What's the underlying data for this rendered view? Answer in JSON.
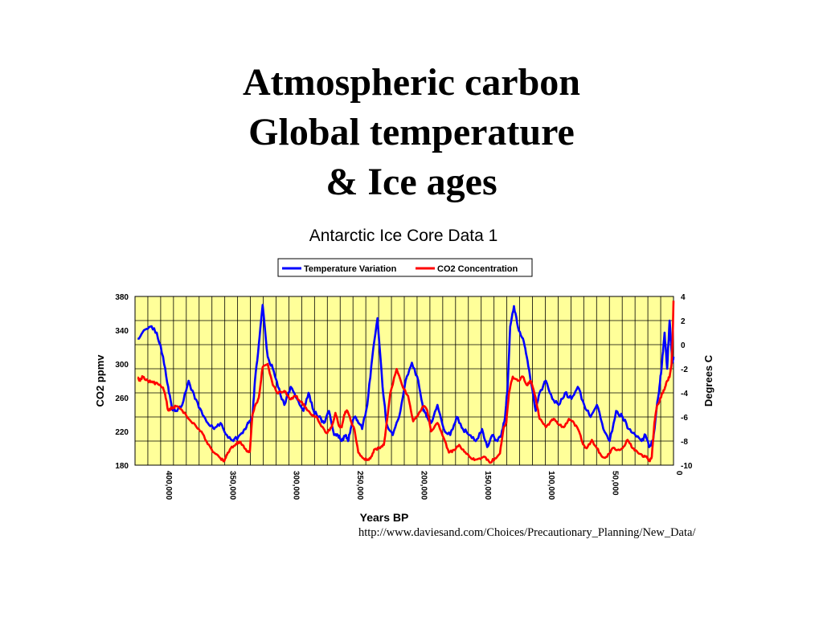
{
  "slide": {
    "title_lines": [
      "Atmospheric carbon",
      "Global temperature",
      "& Ice ages"
    ],
    "source_url": "http://www.daviesand.com/Choices/Precautionary_Planning/New_Data/"
  },
  "colors": {
    "plot_bg": "#ffff99",
    "grid": "#000000",
    "temperature": "#0000ff",
    "co2": "#ff0000"
  },
  "chart_data": {
    "type": "line",
    "title": "Antarctic Ice Core Data 1",
    "xlabel": "Years BP",
    "ylabel_left": "CO2 ppmv",
    "ylabel_right": "Degrees C",
    "xlim": [
      422000,
      0
    ],
    "x_ticks": [
      400000,
      350000,
      300000,
      250000,
      200000,
      150000,
      100000,
      50000,
      0
    ],
    "x_tick_labels": [
      "400,000",
      "350,000",
      "300,000",
      "250,000",
      "200,000",
      "150,000",
      "100,000",
      "50,000",
      "0"
    ],
    "y_left_lim": [
      180,
      380
    ],
    "y_left_ticks": [
      180,
      220,
      260,
      300,
      340,
      380
    ],
    "y_right_lim": [
      -10,
      4
    ],
    "y_right_ticks": [
      -10,
      -8,
      -6,
      -4,
      -2,
      0,
      2,
      4
    ],
    "grid": true,
    "legend_position": "top-center",
    "series": [
      {
        "name": "Temperature Variation",
        "axis": "right",
        "x": [
          420000,
          415000,
          410000,
          405000,
          400000,
          396000,
          393000,
          390000,
          385000,
          380000,
          375000,
          370000,
          365000,
          360000,
          355000,
          350000,
          345000,
          340000,
          336000,
          333000,
          330000,
          328000,
          325000,
          322000,
          318000,
          314000,
          310000,
          305000,
          300000,
          295000,
          290000,
          286000,
          282000,
          278000,
          274000,
          270000,
          266000,
          263000,
          260000,
          257000,
          255000,
          253000,
          250000,
          247000,
          244000,
          240000,
          236000,
          232000,
          228000,
          225000,
          220000,
          215000,
          210000,
          205000,
          200000,
          196000,
          193000,
          190000,
          185000,
          180000,
          175000,
          170000,
          165000,
          160000,
          155000,
          150000,
          146000,
          142000,
          138000,
          135000,
          132000,
          130000,
          128000,
          125000,
          122000,
          118000,
          115000,
          112000,
          108000,
          105000,
          100000,
          95000,
          90000,
          85000,
          80000,
          75000,
          70000,
          65000,
          60000,
          55000,
          50000,
          45000,
          40000,
          35000,
          30000,
          25000,
          22000,
          19000,
          16000,
          13000,
          11000,
          9000,
          7000,
          5000,
          3000,
          1000,
          0
        ],
        "values": [
          0.5,
          1.2,
          1.5,
          1.0,
          -1.0,
          -3.5,
          -5.3,
          -5.5,
          -5.0,
          -3.0,
          -4.5,
          -5.5,
          -6.5,
          -7.0,
          -6.5,
          -7.5,
          -8.0,
          -7.5,
          -7.0,
          -6.5,
          -6.0,
          -3.0,
          0.0,
          3.3,
          -1.0,
          -2.0,
          -3.5,
          -5.0,
          -3.5,
          -4.5,
          -5.5,
          -4.0,
          -5.5,
          -6.0,
          -6.5,
          -5.5,
          -7.5,
          -7.5,
          -8.0,
          -7.5,
          -8.0,
          -7.0,
          -6.0,
          -6.5,
          -7.0,
          -5.0,
          -1.0,
          2.2,
          -3.5,
          -6.5,
          -7.5,
          -6.0,
          -3.0,
          -1.5,
          -3.0,
          -5.5,
          -6.0,
          -6.5,
          -5.0,
          -7.0,
          -7.5,
          -6.0,
          -7.0,
          -7.5,
          -8.0,
          -7.0,
          -8.5,
          -7.5,
          -8.0,
          -7.5,
          -6.0,
          -3.5,
          1.5,
          3.2,
          1.5,
          0.5,
          -1.0,
          -3.0,
          -5.5,
          -4.0,
          -3.0,
          -4.5,
          -5.0,
          -4.0,
          -4.5,
          -3.5,
          -5.0,
          -6.0,
          -5.0,
          -7.0,
          -8.0,
          -5.5,
          -6.0,
          -7.0,
          -7.5,
          -8.0,
          -7.5,
          -8.5,
          -8.0,
          -5.0,
          -3.5,
          -1.5,
          1.0,
          -2.0,
          2.0,
          -1.5,
          -1.0
        ]
      },
      {
        "name": "CO2 Concentration",
        "axis": "left",
        "x": [
          420000,
          418000,
          416000,
          412000,
          408000,
          404000,
          400000,
          398000,
          396000,
          393000,
          390000,
          385000,
          380000,
          375000,
          370000,
          365000,
          360000,
          355000,
          352000,
          350000,
          347000,
          343000,
          340000,
          337000,
          334000,
          332000,
          330000,
          328000,
          325000,
          322000,
          318000,
          314000,
          310000,
          305000,
          300000,
          296000,
          292000,
          288000,
          284000,
          280000,
          276000,
          272000,
          268000,
          265000,
          262000,
          260000,
          258000,
          256000,
          253000,
          250000,
          247000,
          243000,
          240000,
          237000,
          234000,
          230000,
          227000,
          222000,
          217000,
          212000,
          208000,
          204000,
          200000,
          196000,
          193000,
          190000,
          185000,
          180000,
          176000,
          172000,
          168000,
          164000,
          160000,
          156000,
          152000,
          148000,
          144000,
          140000,
          136000,
          133000,
          131000,
          129000,
          126000,
          122000,
          118000,
          115000,
          112000,
          108000,
          105000,
          100000,
          97000,
          94000,
          90000,
          86000,
          82000,
          78000,
          74000,
          71000,
          68000,
          64000,
          60000,
          56000,
          52000,
          48000,
          44000,
          40000,
          36000,
          32000,
          28000,
          24000,
          21000,
          19000,
          17000,
          15000,
          13000,
          11000,
          9000,
          7000,
          5000,
          3000,
          1500,
          500,
          0
        ],
        "values": [
          284,
          280,
          285,
          280,
          278,
          276,
          272,
          260,
          245,
          248,
          250,
          245,
          235,
          228,
          220,
          205,
          195,
          188,
          185,
          192,
          200,
          205,
          208,
          203,
          196,
          196,
          240,
          250,
          260,
          296,
          300,
          275,
          265,
          268,
          258,
          262,
          255,
          248,
          240,
          238,
          226,
          218,
          225,
          242,
          226,
          225,
          240,
          245,
          233,
          222,
          195,
          188,
          186,
          190,
          199,
          200,
          204,
          265,
          294,
          272,
          262,
          232,
          240,
          250,
          245,
          220,
          230,
          212,
          195,
          198,
          204,
          196,
          190,
          186,
          188,
          190,
          183,
          188,
          194,
          225,
          230,
          265,
          285,
          280,
          285,
          275,
          280,
          260,
          235,
          225,
          230,
          235,
          228,
          225,
          235,
          230,
          220,
          205,
          200,
          210,
          200,
          190,
          190,
          200,
          198,
          200,
          210,
          200,
          195,
          190,
          190,
          185,
          190,
          230,
          250,
          255,
          265,
          270,
          280,
          285,
          300,
          340,
          375
        ]
      }
    ]
  }
}
